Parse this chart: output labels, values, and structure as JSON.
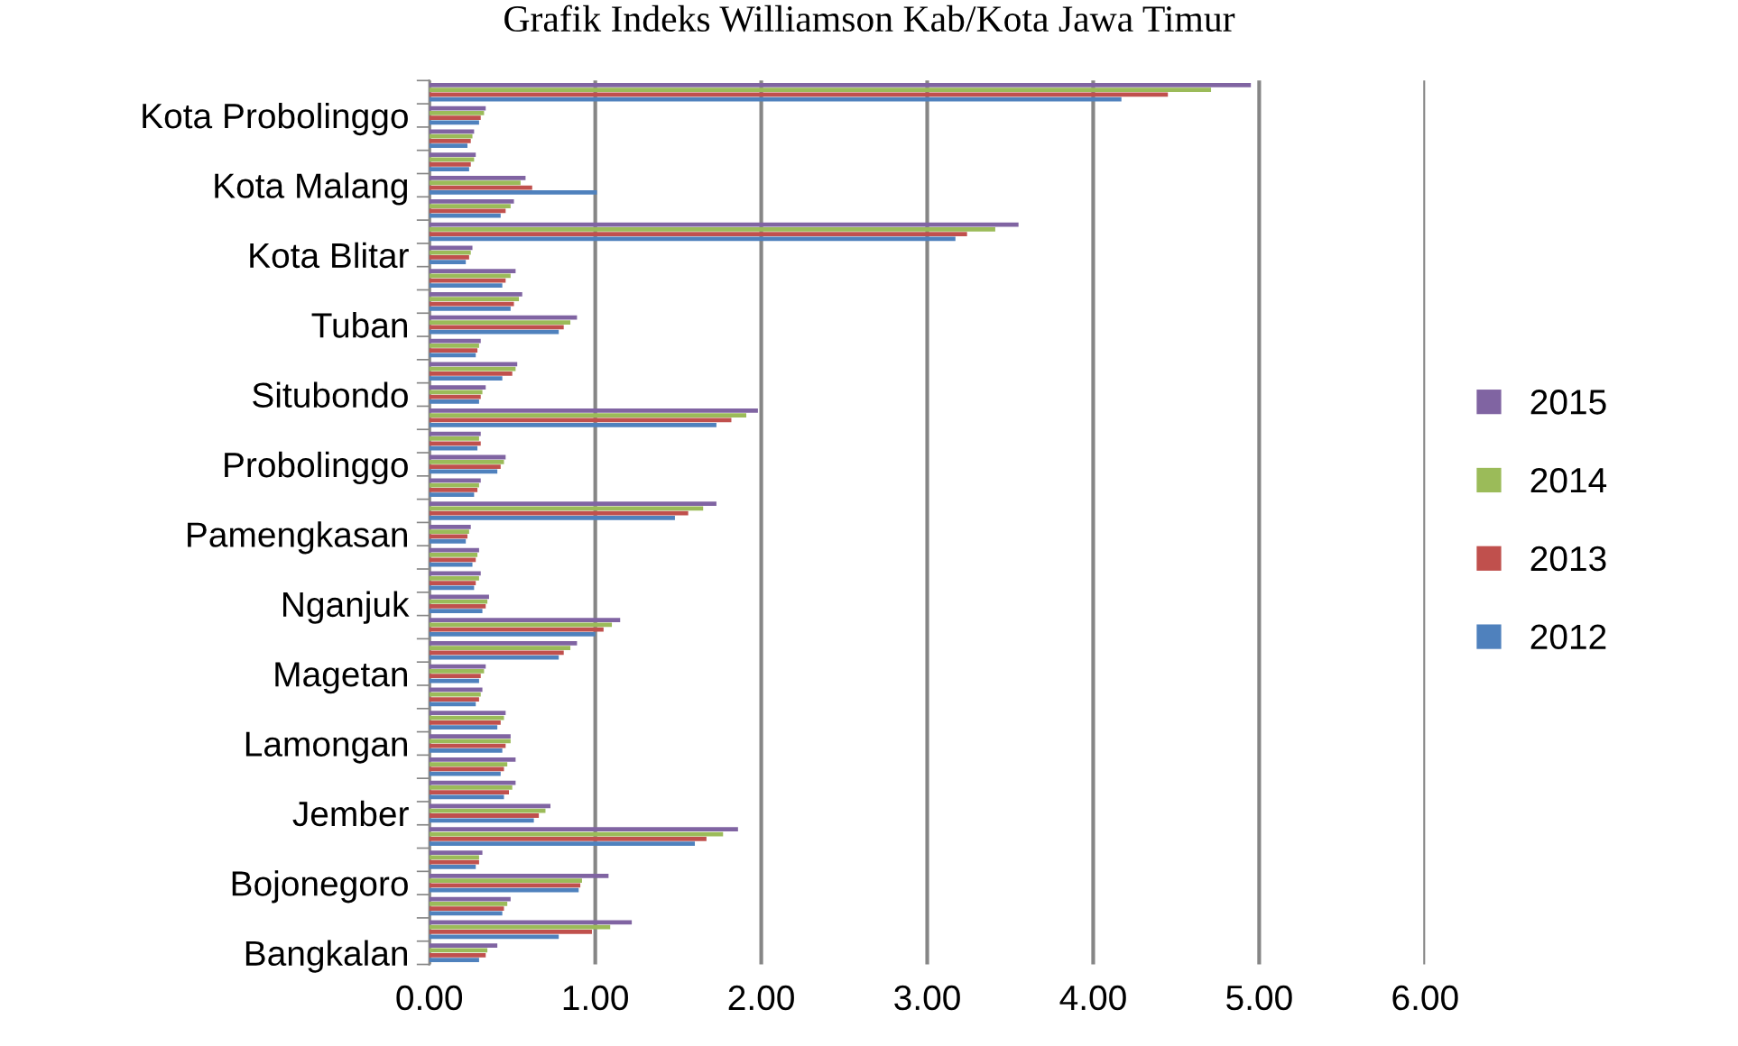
{
  "chart_data": {
    "type": "bar",
    "orientation": "horizontal",
    "title": "Grafik Indeks Williamson Kab/Kota Jawa Timur",
    "categories": [
      null,
      "Kota Probolinggo",
      null,
      null,
      "Kota Malang",
      null,
      null,
      "Kota Blitar",
      null,
      null,
      "Tuban",
      null,
      null,
      "Situbondo",
      null,
      null,
      "Probolinggo",
      null,
      null,
      "Pamengkasan",
      null,
      null,
      "Nganjuk",
      null,
      null,
      "Magetan",
      null,
      null,
      "Lamongan",
      null,
      null,
      "Jember",
      null,
      null,
      "Bojonegoro",
      null,
      null,
      "Bangkalan"
    ],
    "series": [
      {
        "name": "2012",
        "color": "#4f81bd",
        "values": [
          4.17,
          0.3,
          0.23,
          0.24,
          1.01,
          0.43,
          3.17,
          0.22,
          0.44,
          0.49,
          0.78,
          0.28,
          0.44,
          0.3,
          1.73,
          0.29,
          0.41,
          0.27,
          1.48,
          0.22,
          0.26,
          0.27,
          0.32,
          1.0,
          0.78,
          0.3,
          0.28,
          0.41,
          0.44,
          0.43,
          0.45,
          0.63,
          1.6,
          0.28,
          0.9,
          0.44,
          0.78,
          0.3
        ]
      },
      {
        "name": "2013",
        "color": "#c0504d",
        "values": [
          4.45,
          0.31,
          0.25,
          0.25,
          0.62,
          0.46,
          3.24,
          0.24,
          0.46,
          0.51,
          0.81,
          0.29,
          0.5,
          0.31,
          1.82,
          0.31,
          0.43,
          0.29,
          1.56,
          0.23,
          0.28,
          0.28,
          0.34,
          1.05,
          0.81,
          0.31,
          0.3,
          0.43,
          0.46,
          0.45,
          0.48,
          0.66,
          1.67,
          0.3,
          0.91,
          0.45,
          0.98,
          0.34
        ]
      },
      {
        "name": "2014",
        "color": "#9bbb59",
        "values": [
          4.71,
          0.33,
          0.26,
          0.27,
          0.55,
          0.49,
          3.41,
          0.25,
          0.49,
          0.54,
          0.85,
          0.3,
          0.52,
          0.32,
          1.91,
          0.3,
          0.45,
          0.3,
          1.65,
          0.24,
          0.29,
          0.3,
          0.35,
          1.1,
          0.85,
          0.33,
          0.31,
          0.45,
          0.49,
          0.47,
          0.5,
          0.7,
          1.77,
          0.3,
          0.92,
          0.47,
          1.09,
          0.35
        ]
      },
      {
        "name": "2015",
        "color": "#8064a2",
        "values": [
          4.95,
          0.34,
          0.27,
          0.28,
          0.58,
          0.51,
          3.55,
          0.26,
          0.52,
          0.56,
          0.89,
          0.31,
          0.53,
          0.34,
          1.98,
          0.31,
          0.46,
          0.31,
          1.73,
          0.25,
          0.3,
          0.31,
          0.36,
          1.15,
          0.89,
          0.34,
          0.32,
          0.46,
          0.49,
          0.52,
          0.52,
          0.73,
          1.86,
          0.32,
          1.08,
          0.49,
          1.22,
          0.41
        ]
      }
    ],
    "xlim": [
      0,
      6
    ],
    "xticks": [
      {
        "value": 0,
        "label": "0.00"
      },
      {
        "value": 1,
        "label": "1.00"
      },
      {
        "value": 2,
        "label": "2.00"
      },
      {
        "value": 3,
        "label": "3.00"
      },
      {
        "value": 4,
        "label": "4.00"
      },
      {
        "value": 5,
        "label": "5.00"
      },
      {
        "value": 6,
        "label": "6.00"
      }
    ],
    "grid": "x",
    "legend": "right"
  }
}
